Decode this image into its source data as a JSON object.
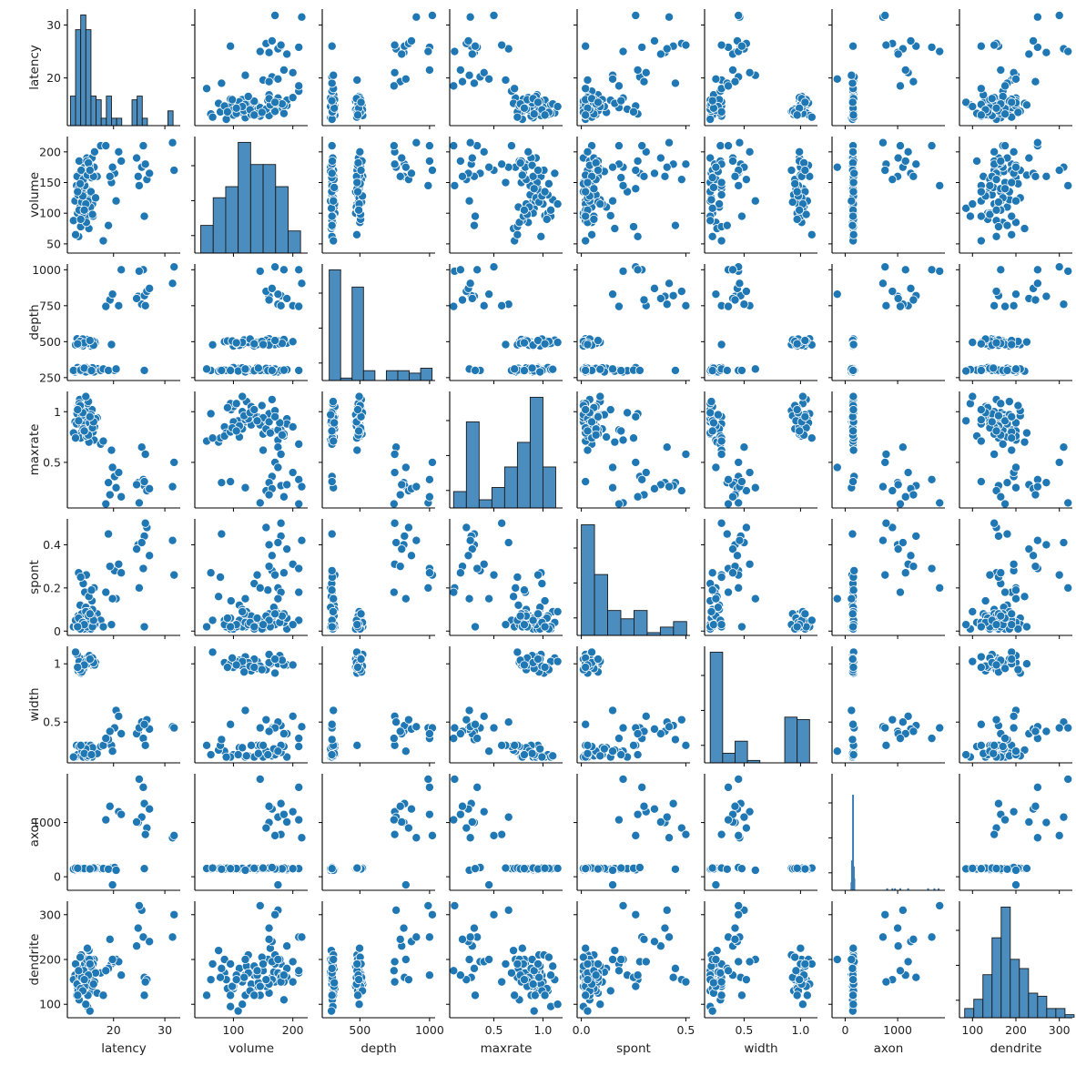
{
  "chart_data": {
    "type": "scatter",
    "title": "",
    "subtitle": "pairplot (scatter matrix) with histograms on diagonal",
    "layout": {
      "grid": false,
      "legend": "none",
      "marker_color": "#1f77b4",
      "marker_edge": "#ffffff",
      "hist_fill": "#4c8dbf",
      "hist_edge": "#1a1a1a"
    },
    "variables": [
      "latency",
      "volume",
      "depth",
      "maxrate",
      "spont",
      "width",
      "axon",
      "dendrite"
    ],
    "axes": {
      "latency": {
        "range": [
          11,
          33
        ],
        "ticks": [
          20,
          30
        ],
        "tick_labels": [
          "20",
          "30"
        ],
        "y_ticks": [
          20,
          30
        ]
      },
      "volume": {
        "range": [
          35,
          225
        ],
        "ticks": [
          100,
          200
        ],
        "tick_labels": [
          "100",
          "200"
        ],
        "y_ticks": [
          50,
          100,
          150,
          200
        ]
      },
      "depth": {
        "range": [
          230,
          1040
        ],
        "ticks": [
          500,
          1000
        ],
        "tick_labels": [
          "500",
          "1000"
        ],
        "y_ticks": [
          250,
          500,
          750,
          1000
        ]
      },
      "maxrate": {
        "range": [
          0.05,
          1.2
        ],
        "ticks": [
          0.5,
          1.0
        ],
        "tick_labels": [
          "0.5",
          "1.0"
        ],
        "y_ticks": [
          0.5,
          1.0
        ]
      },
      "spont": {
        "range": [
          -0.02,
          0.52
        ],
        "ticks": [
          0.0,
          0.5
        ],
        "tick_labels": [
          "0.0",
          "0.5"
        ],
        "y_ticks": [
          0.0,
          0.2,
          0.4
        ]
      },
      "width": {
        "range": [
          0.15,
          1.15
        ],
        "ticks": [
          0.5,
          1.0
        ],
        "tick_labels": [
          "0.5",
          "1.0"
        ],
        "y_ticks": [
          0.5,
          1.0
        ]
      },
      "axon": {
        "range": [
          -250,
          1900
        ],
        "ticks": [
          0,
          1000
        ],
        "tick_labels": [
          "0",
          "1000"
        ],
        "y_ticks": [
          0,
          1000
        ]
      },
      "dendrite": {
        "range": [
          70,
          330
        ],
        "ticks": [
          100,
          200,
          300
        ],
        "tick_labels": [
          "100",
          "200",
          "300"
        ],
        "y_ticks": [
          100,
          200,
          300
        ]
      }
    },
    "histograms": {
      "latency": {
        "bins_x": [
          11.6,
          12.6,
          13.6,
          14.6,
          15.6,
          16.6,
          17.6,
          18.6,
          19.6,
          20.6,
          21.6,
          22.6,
          23.6,
          24.6,
          25.6,
          26.6,
          27.6,
          28.6,
          29.6,
          30.6,
          31.6,
          32.6
        ],
        "heights": [
          8,
          26,
          30,
          26,
          8,
          7,
          2,
          8,
          2,
          2,
          0,
          0,
          7,
          8,
          2,
          0,
          0,
          0,
          0,
          4,
          0
        ]
      },
      "volume": {
        "bins_x": [
          45,
          66,
          87,
          108,
          129,
          150,
          171,
          192,
          213
        ],
        "heights": [
          5,
          10,
          12,
          20,
          16,
          16,
          12,
          4
        ]
      },
      "depth": {
        "bins_x": [
          280,
          362,
          444,
          526,
          608,
          690,
          772,
          854,
          936,
          1018
        ],
        "heights": [
          45,
          1,
          38,
          4,
          0,
          4,
          4,
          3,
          5
        ]
      },
      "maxrate": {
        "bins_x": [
          0.09,
          0.22,
          0.35,
          0.48,
          0.61,
          0.74,
          0.87,
          1.0,
          1.13
        ],
        "heights": [
          4,
          21,
          2,
          5,
          10,
          16,
          27,
          10
        ]
      },
      "spont": {
        "bins_x": [
          0.0,
          0.063,
          0.126,
          0.189,
          0.252,
          0.315,
          0.378,
          0.441,
          0.504
        ],
        "heights": [
          40,
          22,
          9,
          6,
          9,
          1,
          3,
          5
        ]
      },
      "width": {
        "bins_x": [
          0.2,
          0.31,
          0.42,
          0.53,
          0.64,
          0.75,
          0.86,
          0.97,
          1.08
        ],
        "heights": [
          46,
          4,
          9,
          1,
          0,
          0,
          19,
          18
        ]
      },
      "axon": {
        "spikes": [
          [
            150,
            48
          ],
          [
            130,
            15
          ],
          [
            165,
            12
          ],
          [
            175,
            6
          ],
          [
            120,
            4
          ],
          [
            800,
            1
          ],
          [
            900,
            1
          ],
          [
            950,
            1
          ],
          [
            1050,
            1
          ],
          [
            1200,
            1
          ],
          [
            1580,
            1
          ],
          [
            1700,
            1
          ],
          [
            1780,
            1
          ]
        ]
      },
      "dendrite": {
        "bins_x": [
          82,
          103,
          124,
          145,
          166,
          187,
          208,
          229,
          250,
          271,
          292,
          313,
          334
        ],
        "heights": [
          3,
          6,
          14,
          26,
          36,
          19,
          16,
          8,
          7,
          3,
          3,
          1
        ]
      }
    },
    "observations": [
      [
        15.8,
        96,
        310,
        1.02,
        0.14,
        0.2,
        140,
        130
      ],
      [
        13.2,
        62,
        300,
        0.98,
        0.27,
        0.22,
        150,
        155
      ],
      [
        12.5,
        120,
        290,
        0.9,
        0.02,
        0.2,
        120,
        165
      ],
      [
        14.0,
        85,
        305,
        0.85,
        0.05,
        0.25,
        160,
        170
      ],
      [
        14.7,
        140,
        320,
        0.95,
        0.26,
        0.3,
        130,
        140
      ],
      [
        13.8,
        165,
        295,
        0.8,
        0.05,
        0.21,
        155,
        160
      ],
      [
        15.0,
        170,
        310,
        0.97,
        0.1,
        0.22,
        145,
        150
      ],
      [
        14.2,
        150,
        300,
        0.78,
        0.03,
        0.2,
        150,
        175
      ],
      [
        13.5,
        110,
        315,
        0.75,
        0.12,
        0.28,
        140,
        180
      ],
      [
        15.5,
        130,
        300,
        0.87,
        0.03,
        0.3,
        165,
        145
      ],
      [
        16.2,
        175,
        290,
        0.72,
        0.2,
        0.25,
        150,
        200
      ],
      [
        14.8,
        190,
        305,
        0.93,
        0.01,
        0.2,
        130,
        160
      ],
      [
        13.0,
        100,
        320,
        1.05,
        0.02,
        0.22,
        160,
        135
      ],
      [
        14.4,
        180,
        300,
        0.82,
        0.18,
        0.24,
        148,
        190
      ],
      [
        15.2,
        75,
        295,
        0.7,
        0.16,
        0.26,
        152,
        220
      ],
      [
        13.7,
        125,
        310,
        0.96,
        0.06,
        0.21,
        158,
        210
      ],
      [
        12.8,
        145,
        300,
        0.88,
        0.02,
        0.3,
        137,
        120
      ],
      [
        16.8,
        160,
        312,
        0.94,
        0.08,
        0.23,
        162,
        125
      ],
      [
        14.1,
        135,
        298,
        0.99,
        0.22,
        0.2,
        149,
        165
      ],
      [
        15.9,
        115,
        318,
        0.83,
        0.1,
        0.28,
        155,
        150
      ],
      [
        13.3,
        185,
        302,
        0.76,
        0.04,
        0.29,
        143,
        110
      ],
      [
        14.9,
        95,
        306,
        1.08,
        0.01,
        0.2,
        151,
        95
      ],
      [
        15.4,
        108,
        296,
        0.91,
        0.03,
        0.22,
        146,
        85
      ],
      [
        13.9,
        155,
        314,
        0.86,
        0.07,
        0.25,
        159,
        140
      ],
      [
        12.2,
        88,
        300,
        0.79,
        0.02,
        0.2,
        141,
        155
      ],
      [
        14.6,
        168,
        290,
        0.97,
        0.11,
        0.27,
        153,
        172
      ],
      [
        15.1,
        122,
        308,
        1.1,
        0.09,
        0.21,
        147,
        185
      ],
      [
        13.6,
        78,
        302,
        0.74,
        0.25,
        0.3,
        156,
        160
      ],
      [
        14.3,
        142,
        316,
        0.89,
        0.03,
        0.23,
        144,
        148
      ],
      [
        15.7,
        158,
        299,
        0.81,
        0.19,
        0.22,
        160,
        200
      ],
      [
        17.5,
        210,
        300,
        0.68,
        0.05,
        0.29,
        150,
        170
      ],
      [
        18.0,
        55,
        310,
        0.71,
        0.02,
        0.3,
        152,
        120
      ],
      [
        14.5,
        115,
        480,
        1.0,
        0.02,
        0.98,
        140,
        150
      ],
      [
        13.9,
        140,
        495,
        0.95,
        0.05,
        1.02,
        150,
        165
      ],
      [
        15.2,
        175,
        505,
        0.82,
        0.08,
        1.0,
        145,
        170
      ],
      [
        14.0,
        100,
        470,
        0.9,
        0.01,
        0.97,
        160,
        140
      ],
      [
        13.4,
        165,
        510,
        1.12,
        0.04,
        1.05,
        155,
        155
      ],
      [
        15.8,
        190,
        490,
        0.88,
        0.06,
        0.99,
        148,
        180
      ],
      [
        14.7,
        85,
        500,
        0.76,
        0.03,
        1.01,
        142,
        200
      ],
      [
        13.1,
        130,
        485,
        1.05,
        0.07,
        0.94,
        158,
        130
      ],
      [
        12.9,
        160,
        520,
        0.98,
        0.02,
        1.08,
        151,
        145
      ],
      [
        15.5,
        110,
        475,
        0.86,
        0.05,
        1.03,
        146,
        160
      ],
      [
        14.2,
        150,
        495,
        0.94,
        0.01,
        0.96,
        153,
        175
      ],
      [
        16.0,
        95,
        505,
        0.8,
        0.06,
        1.0,
        149,
        190
      ],
      [
        13.7,
        170,
        480,
        1.01,
        0.03,
        0.92,
        157,
        210
      ],
      [
        15.0,
        120,
        492,
        0.92,
        0.04,
        1.06,
        144,
        120
      ],
      [
        14.8,
        185,
        515,
        0.78,
        0.08,
        0.99,
        162,
        150
      ],
      [
        13.3,
        105,
        488,
        1.08,
        0.02,
        1.02,
        147,
        165
      ],
      [
        14.4,
        145,
        500,
        0.87,
        0.05,
        0.98,
        156,
        140
      ],
      [
        15.6,
        135,
        470,
        0.97,
        0.01,
        1.04,
        150,
        185
      ],
      [
        14.1,
        155,
        510,
        0.83,
        0.07,
        0.95,
        152,
        155
      ],
      [
        16.5,
        125,
        495,
        0.93,
        0.03,
        1.01,
        148,
        170
      ],
      [
        13.6,
        90,
        505,
        1.04,
        0.06,
        0.97,
        159,
        135
      ],
      [
        15.3,
        178,
        484,
        0.89,
        0.04,
        1.07,
        143,
        200
      ],
      [
        14.9,
        162,
        498,
        0.79,
        0.02,
        1.0,
        154,
        225
      ],
      [
        13.8,
        118,
        512,
        0.96,
        0.08,
        0.93,
        146,
        160
      ],
      [
        12.6,
        65,
        478,
        0.74,
        0.05,
        1.1,
        161,
        190
      ],
      [
        16.3,
        200,
        500,
        0.85,
        0.03,
        0.99,
        149,
        150
      ],
      [
        14.6,
        115,
        495,
        1.15,
        0.09,
        1.02,
        155,
        100
      ],
      [
        13.2,
        140,
        480,
        0.91,
        0.06,
        0.96,
        150,
        175
      ],
      [
        15.9,
        98,
        505,
        0.84,
        0.02,
        1.05,
        145,
        140
      ],
      [
        14.0,
        128,
        518,
        0.99,
        0.04,
        0.98,
        158,
        130
      ],
      [
        15.1,
        182,
        488,
        0.77,
        0.07,
        1.03,
        147,
        165
      ],
      [
        13.5,
        148,
        502,
        1.06,
        0.01,
        0.95,
        153,
        205
      ],
      [
        16.1,
        160,
        476,
        0.9,
        0.05,
        1.01,
        160,
        145
      ],
      [
        14.3,
        105,
        492,
        0.81,
        0.03,
        0.99,
        151,
        155
      ],
      [
        15.4,
        170,
        508,
        0.95,
        0.08,
        1.04,
        144,
        190
      ],
      [
        13.0,
        135,
        485,
        1.02,
        0.02,
        0.97,
        157,
        120
      ],
      [
        19.6,
        150,
        480,
        0.62,
        0.03,
        0.3,
        160,
        190
      ],
      [
        20.2,
        165,
        300,
        0.36,
        0.28,
        0.45,
        170,
        195
      ],
      [
        19.0,
        80,
        300,
        0.3,
        0.45,
        0.35,
        140,
        180
      ],
      [
        20.5,
        120,
        310,
        0.25,
        0.15,
        0.6,
        120,
        200
      ],
      [
        21.0,
        200,
        750,
        0.4,
        0.31,
        0.55,
        1200,
        195
      ],
      [
        24.8,
        160,
        815,
        0.3,
        0.4,
        0.42,
        1000,
        270
      ],
      [
        26.0,
        180,
        820,
        0.27,
        0.44,
        0.47,
        1350,
        160
      ],
      [
        25.5,
        175,
        760,
        0.65,
        0.41,
        0.5,
        1100,
        310
      ],
      [
        24.5,
        190,
        800,
        0.28,
        0.38,
        0.4,
        1010,
        230
      ],
      [
        26.5,
        155,
        850,
        0.22,
        0.48,
        0.52,
        900,
        155
      ],
      [
        25.8,
        210,
        1000,
        0.33,
        0.29,
        0.36,
        1650,
        250
      ],
      [
        27.0,
        165,
        870,
        0.24,
        0.35,
        0.44,
        1250,
        240
      ],
      [
        26.2,
        180,
        750,
        0.58,
        0.5,
        0.3,
        780,
        150
      ],
      [
        25.0,
        145,
        990,
        0.1,
        0.2,
        0.45,
        1800,
        320
      ],
      [
        31.5,
        215,
        905,
        0.26,
        0.42,
        0.46,
        720,
        250
      ],
      [
        31.8,
        170,
        1020,
        0.5,
        0.26,
        0.45,
        760,
        300
      ],
      [
        19.3,
        160,
        790,
        0.18,
        0.3,
        0.42,
        1300,
        245
      ],
      [
        26.0,
        95,
        300,
        0.31,
        0.02,
        0.48,
        150,
        120
      ],
      [
        19.8,
        175,
        830,
        0.45,
        0.15,
        0.25,
        -150,
        200
      ],
      [
        21.5,
        185,
        1000,
        0.16,
        0.27,
        0.4,
        1150,
        165
      ],
      [
        18.5,
        210,
        745,
        0.09,
        0.18,
        0.36,
        1050,
        175
      ]
    ]
  },
  "figure": {
    "axis_labels": {
      "latency": "latency",
      "volume": "volume",
      "depth": "depth",
      "maxrate": "maxrate",
      "spont": "spont",
      "width": "width",
      "axon": "axon",
      "dendrite": "dendrite"
    }
  }
}
